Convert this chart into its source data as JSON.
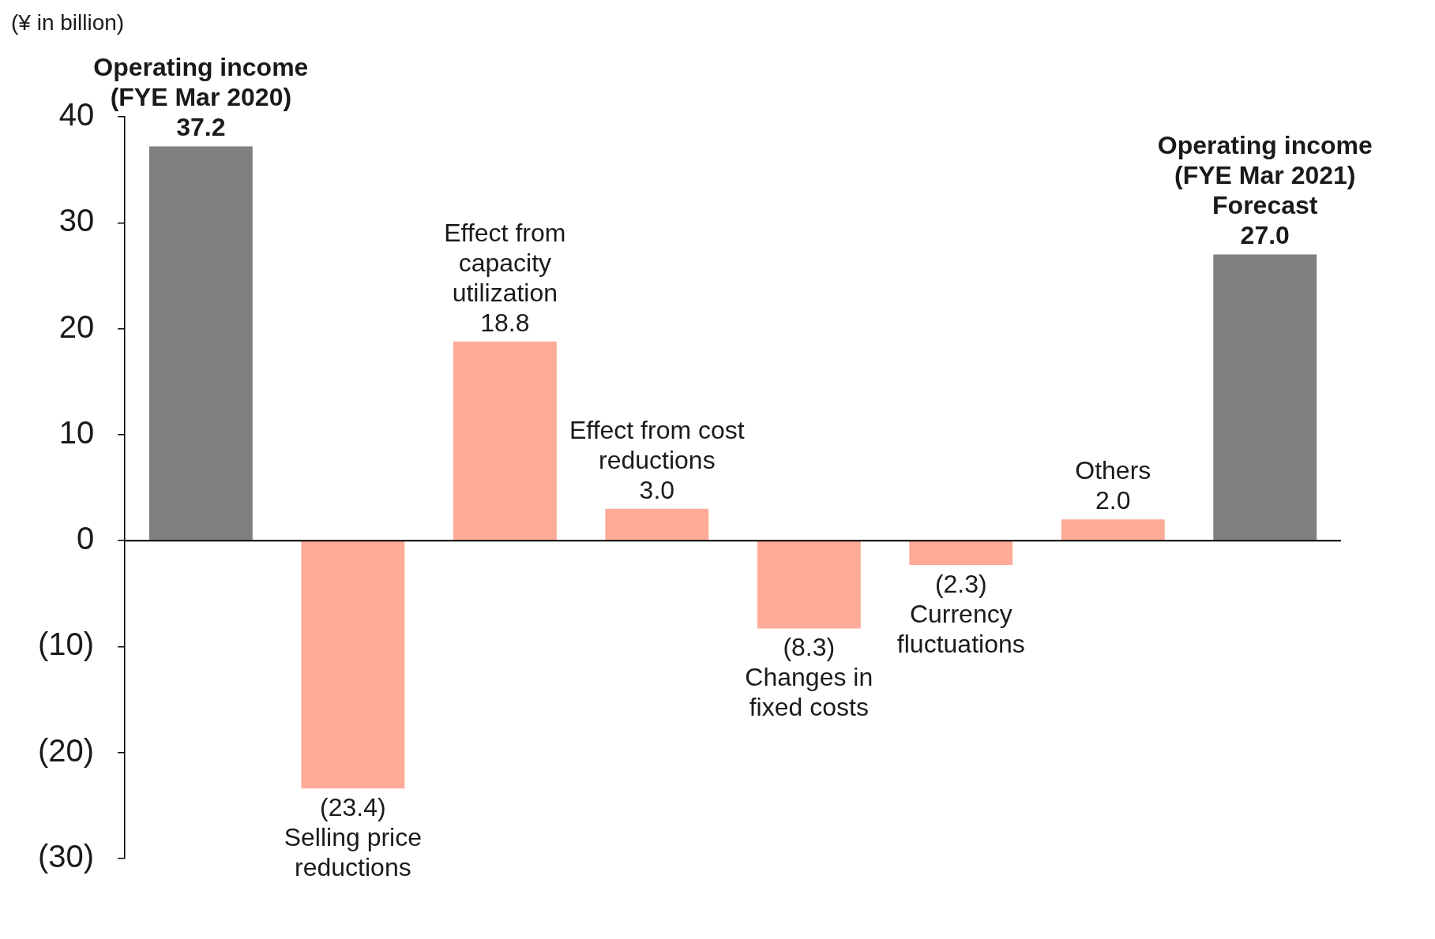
{
  "chart_data": {
    "type": "bar",
    "ylabel": "(¥ in billion)",
    "categories": [
      "Operating income (FYE Mar 2020)",
      "Selling price reductions",
      "Effect from capacity utilization",
      "Effect from cost reductions",
      "Changes in fixed costs",
      "Currency fluctuations",
      "Others",
      "Operating income (FYE Mar 2021) Forecast"
    ],
    "series": [
      {
        "color": "#808080",
        "values": [
          37.2,
          null,
          null,
          null,
          null,
          null,
          null,
          27.0
        ],
        "value_labels": [
          "37.2",
          null,
          null,
          null,
          null,
          null,
          null,
          "27.0"
        ]
      },
      {
        "color": "#ffab98",
        "values": [
          null,
          -23.4,
          18.8,
          3.0,
          -8.3,
          -2.3,
          2.0,
          null
        ],
        "value_labels": [
          null,
          "(23.4)",
          "18.8",
          "3.0",
          "(8.3)",
          "(2.3)",
          "2.0",
          null
        ]
      }
    ],
    "ylim": [
      -30,
      40
    ],
    "yticks": [
      {
        "value": -30,
        "label": "(30)"
      },
      {
        "value": -20,
        "label": "(20)"
      },
      {
        "value": -10,
        "label": "(10)"
      },
      0,
      10,
      20,
      30,
      40
    ],
    "tick_labels": "y",
    "legend": false
  }
}
